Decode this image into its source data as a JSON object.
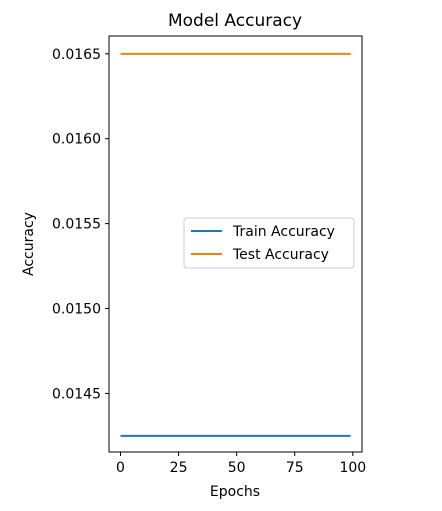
{
  "chart_data": {
    "type": "line",
    "title": "Model Accuracy",
    "xlabel": "Epochs",
    "ylabel": "Accuracy",
    "xlim": [
      -4.95,
      103.95
    ],
    "ylim": [
      0.014155,
      0.016605
    ],
    "xticks": [
      0,
      25,
      50,
      75,
      100
    ],
    "yticks": [
      0.0145,
      0.015,
      0.0155,
      0.016,
      0.0165
    ],
    "ytick_labels": [
      "0.0145",
      "0.0150",
      "0.0155",
      "0.0160",
      "0.0165"
    ],
    "grid": false,
    "legend_position": "center-right",
    "series": [
      {
        "name": "Train Accuracy",
        "color": "#1f77b4",
        "x": [
          0,
          99
        ],
        "y": [
          0.01425,
          0.01425
        ]
      },
      {
        "name": "Test Accuracy",
        "color": "#ff7f0e",
        "x": [
          0,
          99
        ],
        "y": [
          0.0165,
          0.0165
        ]
      }
    ]
  }
}
